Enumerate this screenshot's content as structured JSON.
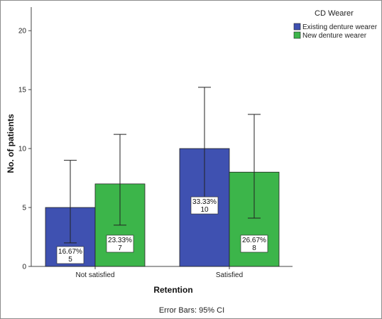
{
  "chart_data": {
    "type": "bar",
    "categories": [
      "Not satisfied",
      "Satisfied"
    ],
    "series": [
      {
        "name": "Existing denture wearer",
        "color": "#3f51b1",
        "values": [
          5,
          10
        ],
        "ci_low": [
          2.0,
          4.8
        ],
        "ci_high": [
          9.0,
          15.2
        ],
        "labels": [
          [
            "16.67%",
            "5"
          ],
          [
            "33.33%",
            "10"
          ]
        ]
      },
      {
        "name": "New denture wearer",
        "color": "#3cb54a",
        "values": [
          7,
          8
        ],
        "ci_low": [
          3.5,
          4.1
        ],
        "ci_high": [
          11.2,
          12.9
        ],
        "labels": [
          [
            "23.33%",
            "7"
          ],
          [
            "26.67%",
            "8"
          ]
        ]
      }
    ],
    "xlabel": "Retention",
    "ylabel": "No. of patients",
    "ylim": [
      0,
      22
    ],
    "yticks": [
      0,
      5,
      10,
      15,
      20
    ],
    "legend": {
      "title": "CD Wearer",
      "position": "top-right"
    },
    "grid": false,
    "footnote": "Error Bars: 95% CI"
  }
}
